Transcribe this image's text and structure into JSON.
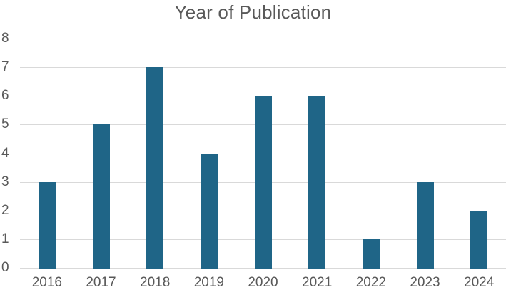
{
  "chart_data": {
    "type": "bar",
    "title": "Year of Publication",
    "categories": [
      "2016",
      "2017",
      "2018",
      "2019",
      "2020",
      "2021",
      "2022",
      "2023",
      "2024"
    ],
    "values": [
      3,
      5,
      7,
      4,
      6,
      6,
      1,
      3,
      2
    ],
    "xlabel": "",
    "ylabel": "",
    "ylim": [
      0,
      8
    ],
    "ytick_step": 1,
    "yticks": [
      0,
      1,
      2,
      3,
      4,
      5,
      6,
      7,
      8
    ],
    "legend": "none",
    "grid": "horizontal",
    "colors": {
      "bar": "#1f6587",
      "title": "#595959",
      "tick_labels": "#595959",
      "gridline": "#d9d9d9",
      "background": "#ffffff"
    }
  }
}
